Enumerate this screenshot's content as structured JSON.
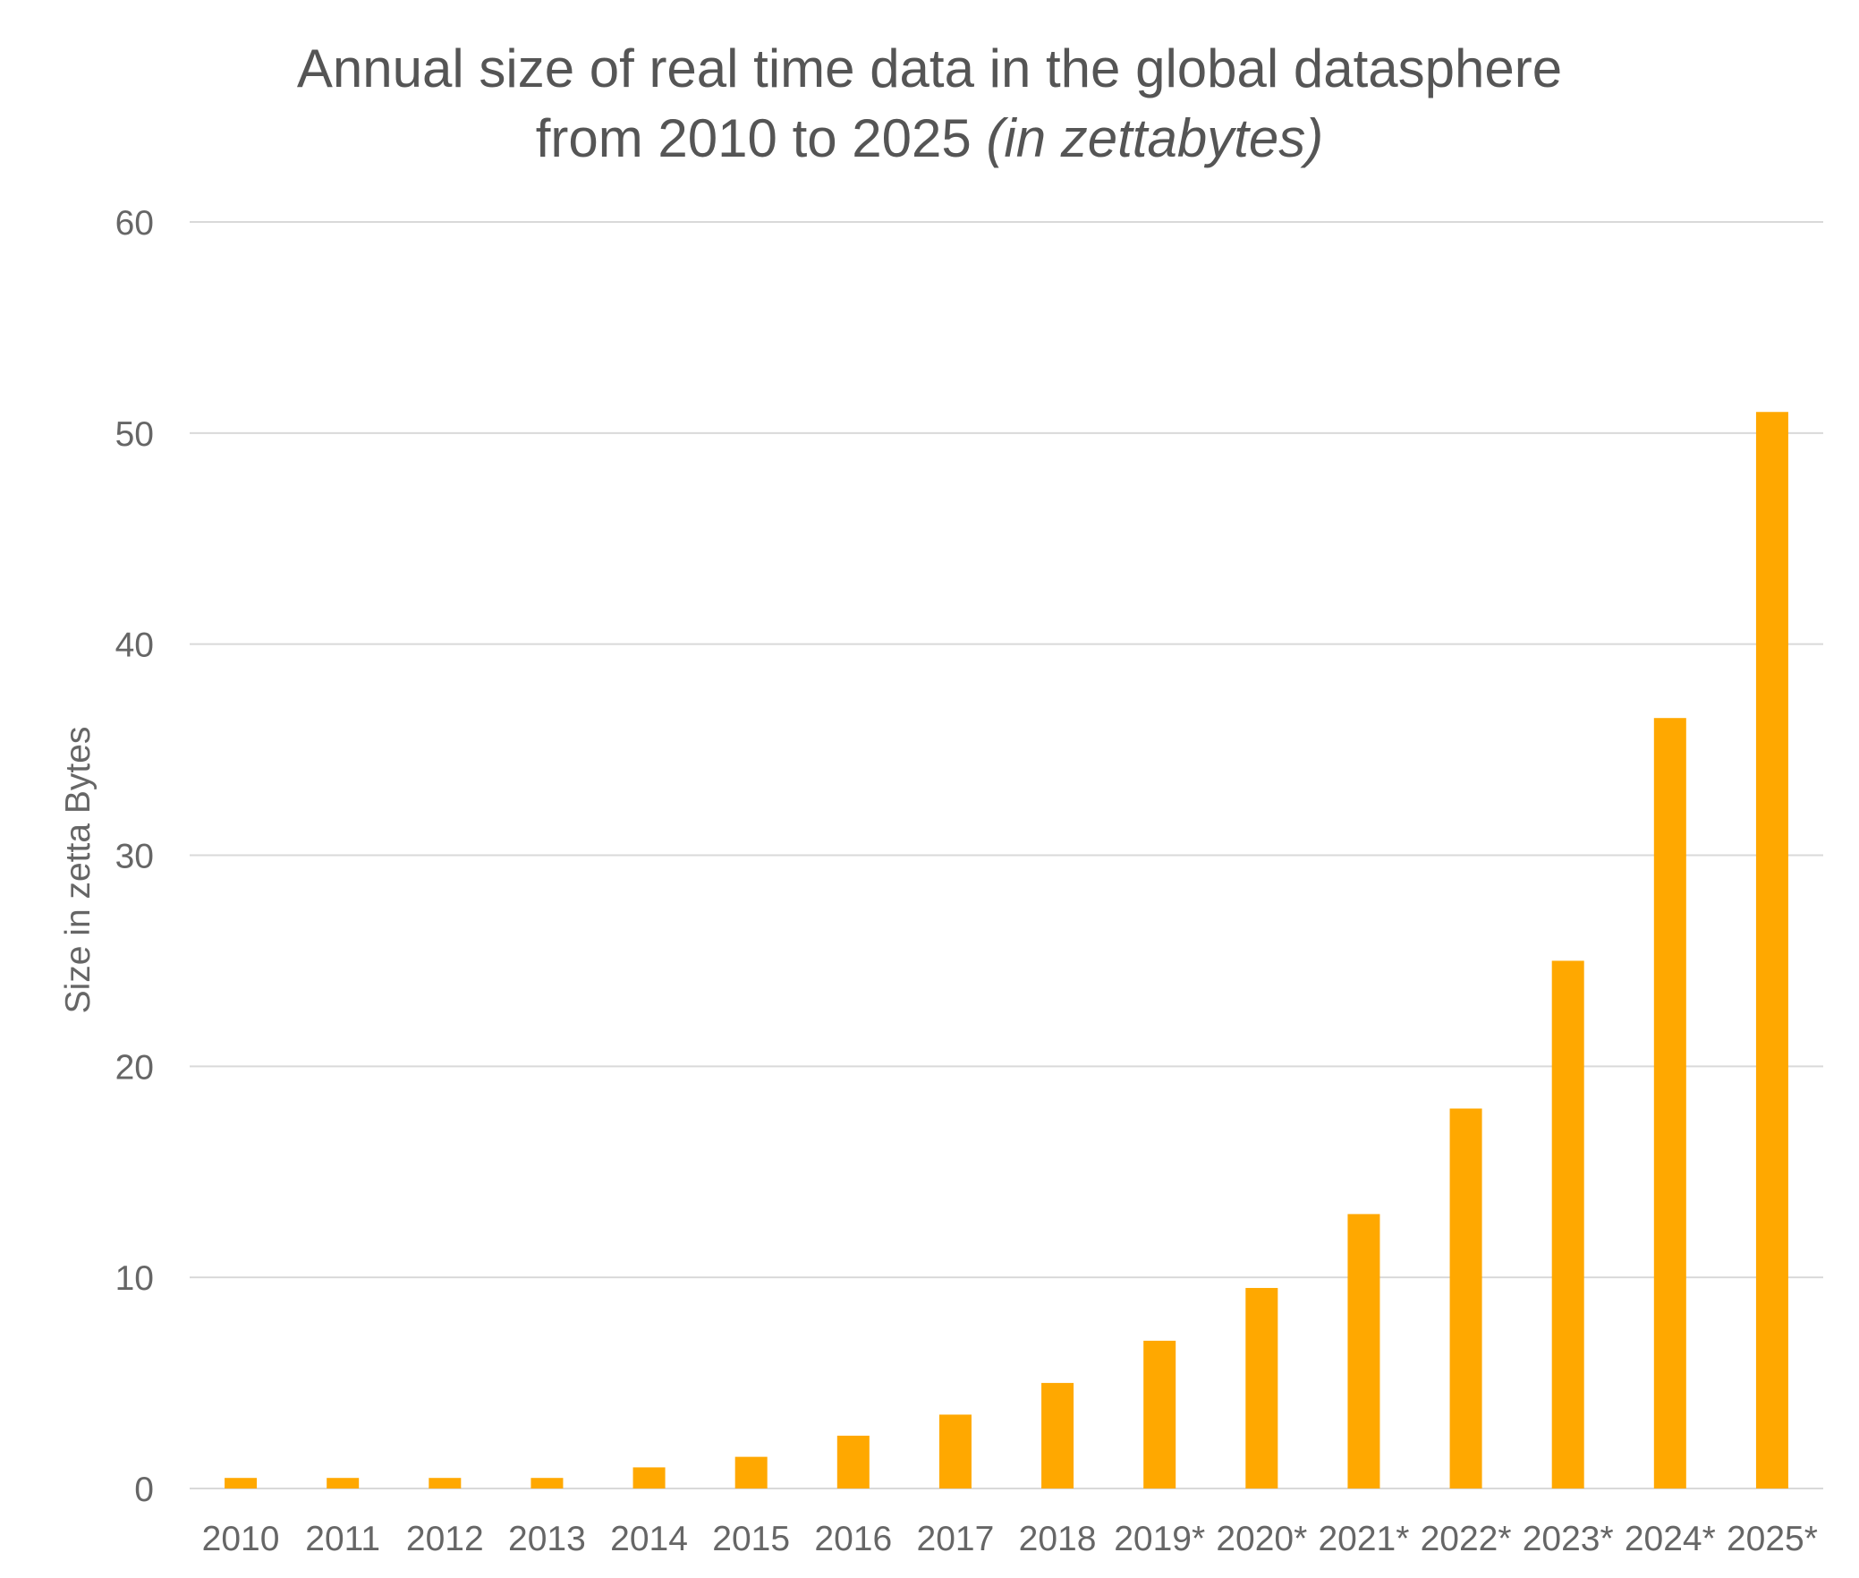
{
  "chart_data": {
    "type": "bar",
    "title": {
      "line1": "Annual size of real time data in the global datasphere",
      "line2_main": "from 2010 to 2025 ",
      "line2_italic": "(in zettabytes)"
    },
    "xlabel": "",
    "ylabel": "Size in zetta Bytes",
    "categories": [
      "2010",
      "2011",
      "2012",
      "2013",
      "2014",
      "2015",
      "2016",
      "2017",
      "2018",
      "2019*",
      "2020*",
      "2021*",
      "2022*",
      "2023*",
      "2024*",
      "2025*"
    ],
    "values": [
      0.5,
      0.5,
      0.5,
      0.5,
      1,
      1.5,
      2.5,
      3.5,
      5,
      7,
      9.5,
      13,
      18,
      25,
      36.5,
      51
    ],
    "ylim": [
      0,
      60
    ],
    "yticks": [
      0,
      10,
      20,
      30,
      40,
      50,
      60
    ],
    "grid": true,
    "legend": "none",
    "colors": {
      "bar": "#FFA800",
      "grid": "#D9D9D9",
      "text": "#666666",
      "title": "#555555"
    }
  }
}
